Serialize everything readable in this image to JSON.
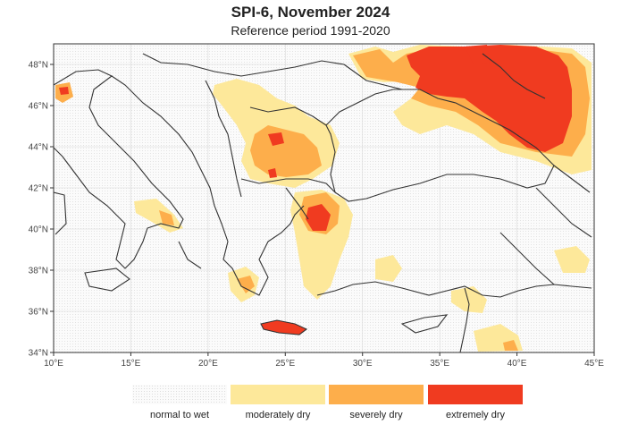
{
  "title": "SPI-6, November 2024",
  "subtitle": "Reference period 1991-2020",
  "map": {
    "lon_range": [
      10,
      45
    ],
    "lat_range": [
      34,
      49
    ],
    "lon_ticks": [
      {
        "value": 10,
        "label": "10°E"
      },
      {
        "value": 15,
        "label": "15°E"
      },
      {
        "value": 20,
        "label": "20°E"
      },
      {
        "value": 25,
        "label": "25°E"
      },
      {
        "value": 30,
        "label": "30°E"
      },
      {
        "value": 35,
        "label": "35°E"
      },
      {
        "value": 40,
        "label": "40°E"
      },
      {
        "value": 45,
        "label": "45°E"
      }
    ],
    "lat_ticks": [
      {
        "value": 34,
        "label": "34°N"
      },
      {
        "value": 36,
        "label": "36°N"
      },
      {
        "value": 38,
        "label": "38°N"
      },
      {
        "value": 40,
        "label": "40°N"
      },
      {
        "value": 42,
        "label": "42°N"
      },
      {
        "value": 44,
        "label": "44°N"
      },
      {
        "value": 46,
        "label": "46°N"
      },
      {
        "value": 48,
        "label": "48°N"
      }
    ],
    "grid": true
  },
  "legend": [
    {
      "label": "normal to wet",
      "color": "#f4f4f4"
    },
    {
      "label": "moderately dry",
      "color": "#fde89a"
    },
    {
      "label": "severely dry",
      "color": "#fdae4b"
    },
    {
      "label": "extremely dry",
      "color": "#f03b20"
    }
  ],
  "colors": {
    "moderately_dry": "#fde89a",
    "severely_dry": "#fdae4b",
    "extremely_dry": "#f03b20",
    "grid": "#d9d9d9",
    "border": "#333333"
  }
}
